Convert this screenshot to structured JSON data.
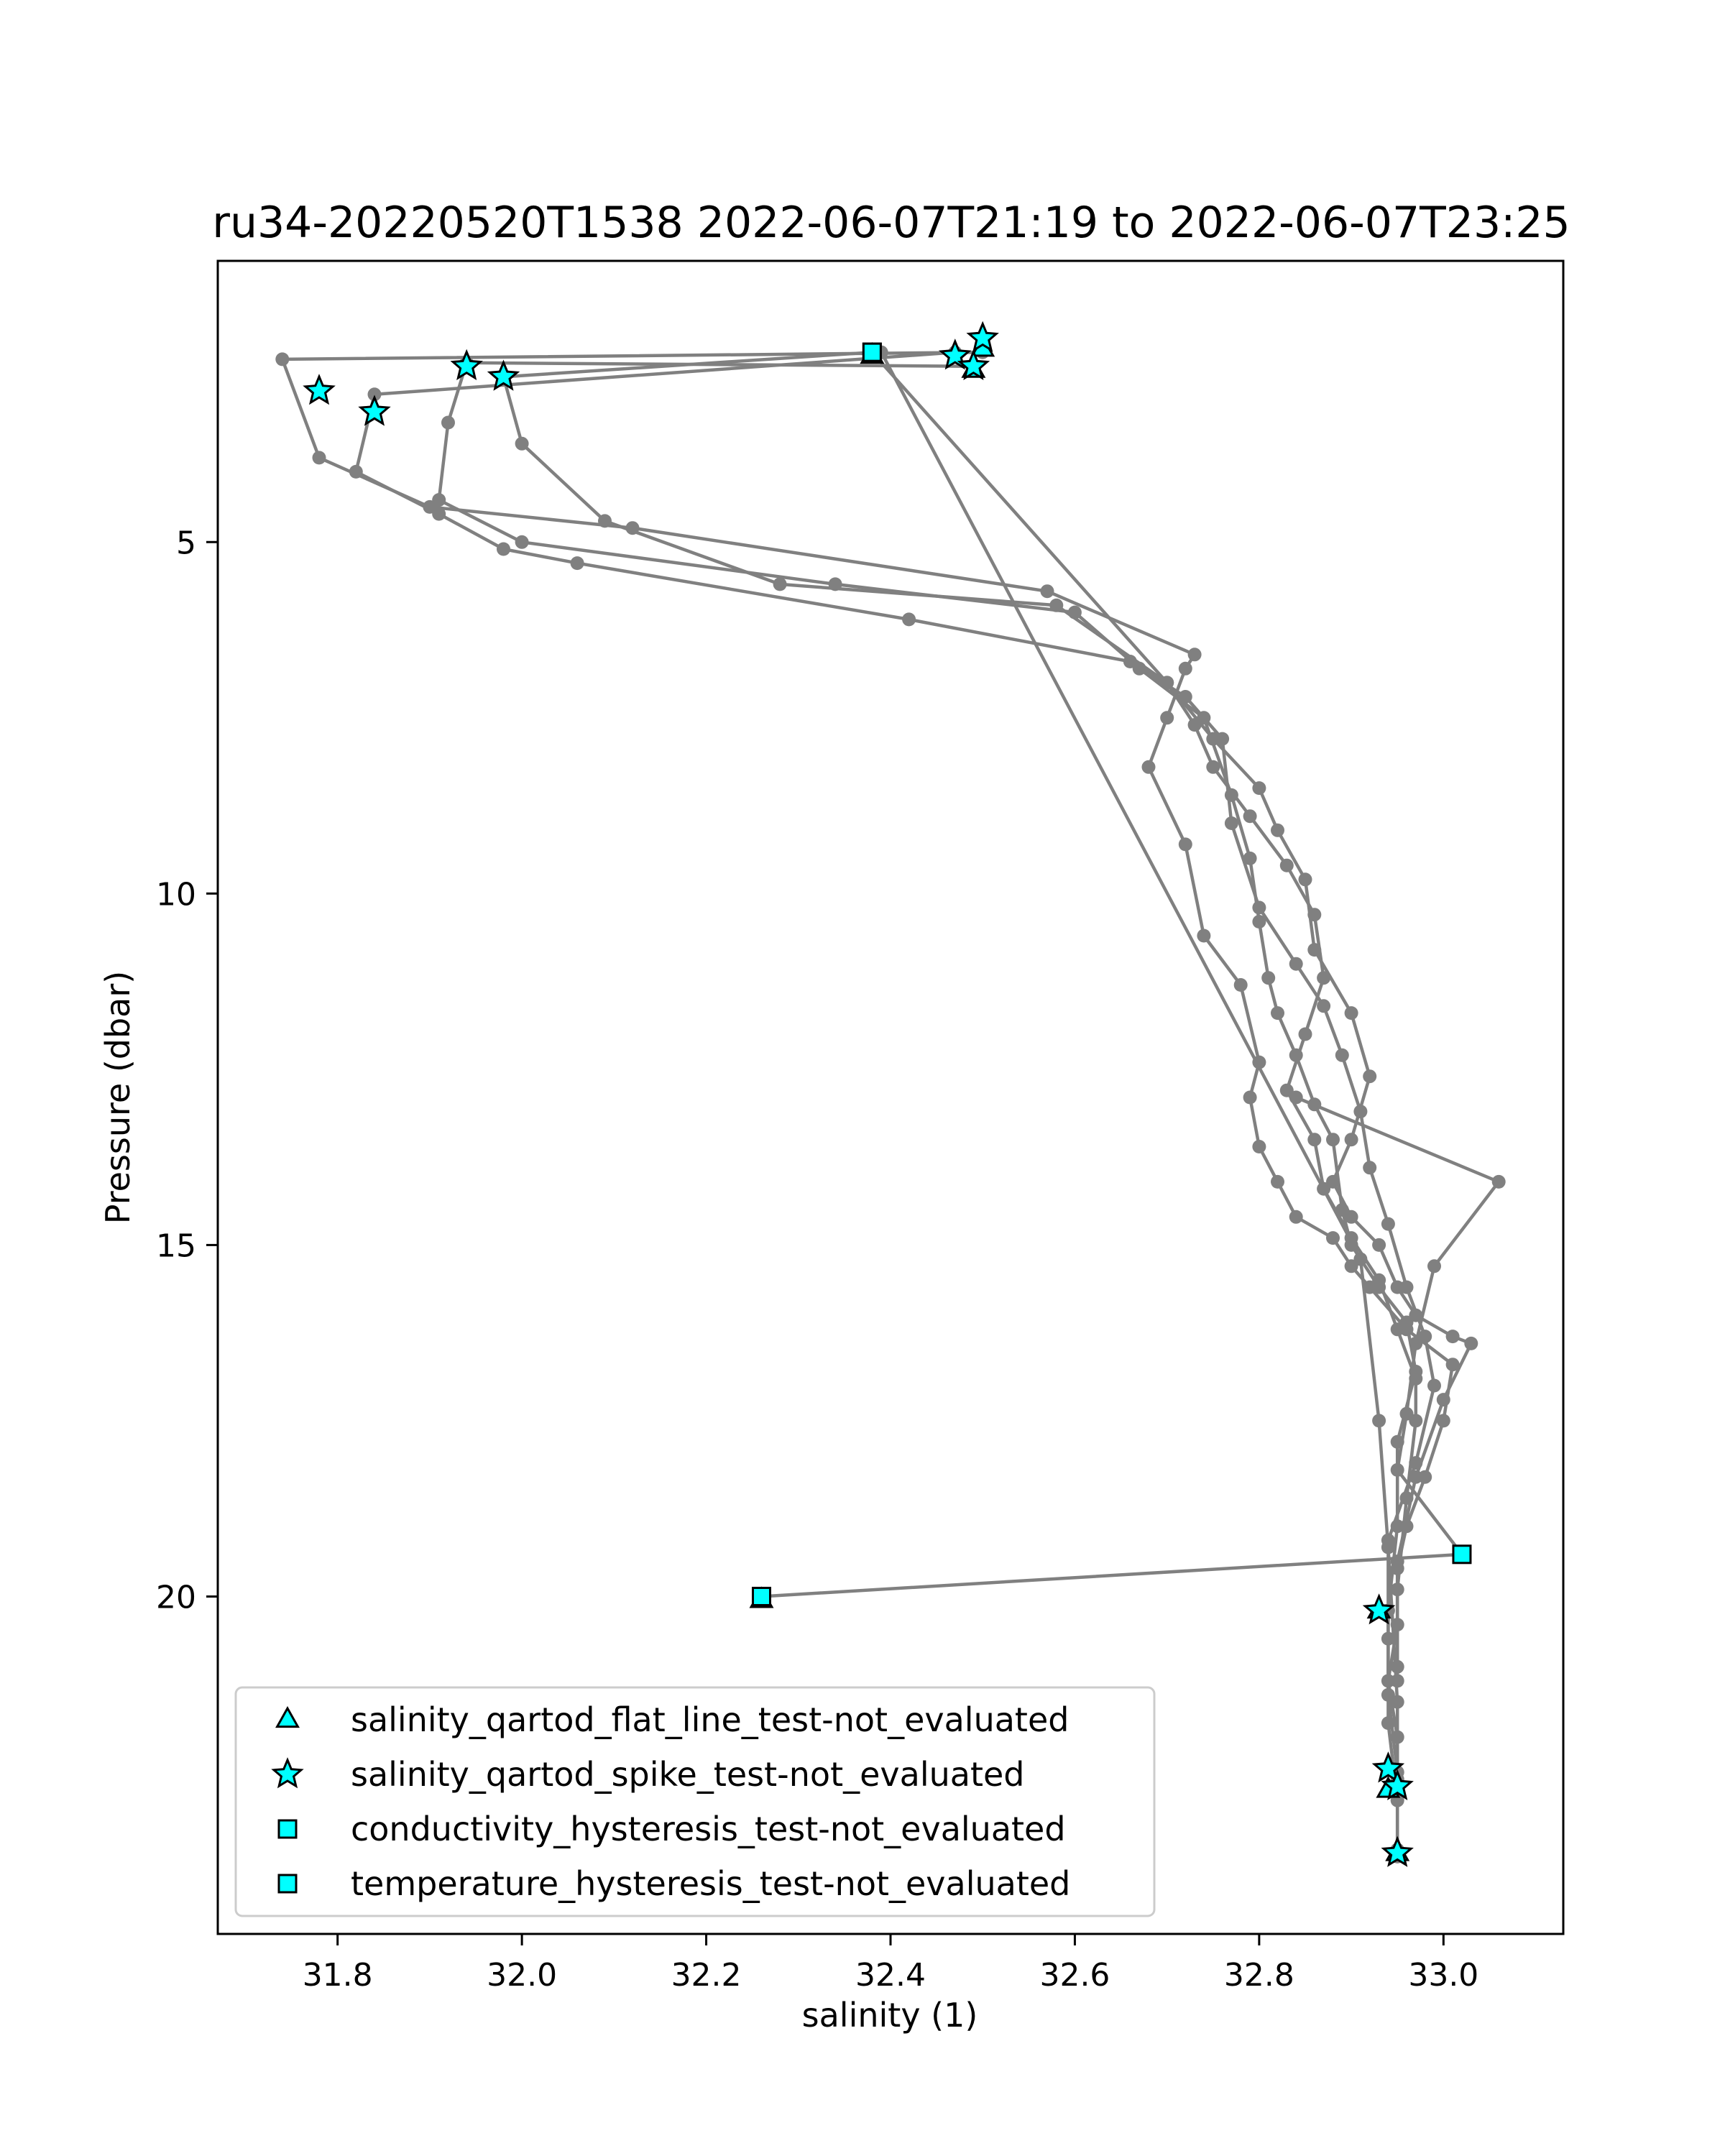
{
  "chart_data": {
    "type": "scatter",
    "title": "ru34-20220520T1538 2022-06-07T21:19 to 2022-06-07T23:25",
    "xlabel": "salinity (1)",
    "ylabel": "Pressure (dbar)",
    "xlim": [
      31.67,
      33.13
    ],
    "ylim": [
      24.8,
      1.0
    ],
    "y_inverted": true,
    "x_ticks": [
      31.8,
      32.0,
      32.2,
      32.4,
      32.6,
      32.8,
      33.0
    ],
    "x_tick_labels": [
      "31.8",
      "32.0",
      "32.2",
      "32.4",
      "32.6",
      "32.8",
      "33.0"
    ],
    "y_ticks": [
      5,
      10,
      15,
      20
    ],
    "y_tick_labels": [
      "5",
      "10",
      "15",
      "20"
    ],
    "grid": false,
    "legend_position": "lower-left",
    "colors": {
      "profile_line": "#808080",
      "profile_point": "#808080",
      "flag_fill": "#00ffff",
      "flag_edge": "#000000"
    },
    "series": [
      {
        "name": "",
        "role": "profile",
        "x": [
          32.5,
          31.74,
          31.78,
          31.9,
          32.12,
          32.57,
          32.73,
          32.72,
          32.7,
          32.68,
          32.72,
          32.74,
          32.78,
          32.8,
          32.79,
          32.8,
          32.82,
          32.84,
          32.88,
          32.9,
          32.92,
          32.96,
          33.01,
          33.0,
          32.98,
          32.96,
          32.95,
          32.95,
          32.94,
          32.95,
          32.95,
          32.95
        ],
        "y": [
          2.3,
          2.4,
          3.8,
          4.5,
          4.8,
          5.7,
          6.6,
          6.8,
          7.5,
          8.2,
          9.3,
          10.6,
          11.3,
          12.4,
          12.9,
          13.6,
          14.1,
          14.6,
          14.9,
          15.3,
          15.6,
          16.2,
          16.7,
          17.5,
          18.3,
          19.0,
          19.6,
          20.4,
          21.2,
          22.0,
          22.6,
          23.6
        ]
      },
      {
        "name": "",
        "role": "profile",
        "x": [
          32.49,
          31.94,
          31.92,
          31.91,
          32.0,
          32.34,
          32.6,
          32.67,
          32.74,
          32.77,
          32.79,
          32.8,
          32.81,
          32.82,
          32.84,
          32.86,
          32.88,
          32.89,
          32.9,
          32.93,
          32.96,
          32.97,
          32.95,
          32.95,
          32.94,
          32.94,
          32.95
        ],
        "y": [
          2.5,
          2.45,
          3.3,
          4.4,
          5.0,
          5.6,
          6.0,
          6.8,
          7.5,
          8.6,
          9.5,
          10.4,
          11.2,
          11.7,
          12.3,
          13.0,
          13.5,
          14.5,
          15.0,
          15.6,
          16.1,
          16.8,
          17.8,
          19.0,
          20.2,
          21.4,
          22.5
        ]
      },
      {
        "name": "",
        "role": "profile",
        "x": [
          32.47,
          31.84,
          31.82,
          31.91,
          31.98,
          32.06,
          32.42,
          32.66,
          32.72,
          32.76,
          32.77,
          32.8,
          32.84,
          32.87,
          32.89,
          32.91,
          32.92,
          32.94,
          32.96,
          32.98,
          32.99,
          32.97,
          32.94,
          32.94,
          32.94,
          32.95
        ],
        "y": [
          2.3,
          2.9,
          4.0,
          4.6,
          5.1,
          5.3,
          6.1,
          6.7,
          7.2,
          7.8,
          9.0,
          10.2,
          11.0,
          11.6,
          12.3,
          13.1,
          13.9,
          14.7,
          15.6,
          16.3,
          17.0,
          18.1,
          19.2,
          20.6,
          21.8,
          22.9
        ]
      },
      {
        "name": "",
        "role": "profile",
        "x": [
          32.38,
          31.98,
          32.0,
          32.09,
          32.28,
          32.58,
          32.7,
          32.75,
          32.8,
          32.82,
          32.85,
          32.86,
          32.9,
          32.92,
          32.9,
          32.88,
          32.9,
          32.93,
          32.95,
          32.97,
          33.01,
          33.03,
          33.0,
          32.97,
          32.95,
          32.95
        ],
        "y": [
          2.3,
          2.65,
          3.6,
          4.7,
          5.6,
          5.9,
          7.0,
          7.8,
          8.5,
          9.1,
          9.8,
          10.8,
          11.7,
          12.6,
          13.5,
          14.1,
          14.6,
          15.0,
          15.6,
          16.0,
          16.3,
          16.4,
          17.2,
          18.3,
          19.5,
          21.0
        ]
      },
      {
        "name": "",
        "role": "profile",
        "x": [
          32.38,
          32.7,
          32.73,
          32.75,
          32.79,
          32.83,
          32.86,
          32.87,
          32.85,
          32.83,
          32.86,
          32.87,
          32.9,
          32.93,
          32.95,
          32.97,
          32.97,
          32.96,
          32.95,
          32.95
        ],
        "y": [
          2.3,
          7.0,
          7.6,
          8.2,
          8.9,
          9.6,
          10.3,
          11.2,
          12.0,
          12.8,
          13.5,
          14.2,
          14.9,
          15.5,
          16.2,
          16.9,
          17.5,
          18.6,
          19.9,
          21.2
        ]
      },
      {
        "name": "",
        "role": "profile",
        "x": [
          32.84,
          33.06,
          32.99,
          32.97,
          32.96,
          32.95,
          33.02,
          32.26
        ],
        "y": [
          12.9,
          14.1,
          15.3,
          16.4,
          17.4,
          18.2,
          19.4,
          20.0
        ]
      },
      {
        "name": "",
        "role": "profile",
        "x": [
          32.39,
          32.91,
          32.93,
          32.94,
          32.95,
          32.95
        ],
        "y": [
          2.3,
          15.2,
          17.5,
          19.3,
          21.5,
          23.7
        ]
      },
      {
        "name": "salinity_qartod_flat_line_test-not_evaluated",
        "role": "flag",
        "marker": "triangle",
        "x": [
          32.38,
          32.5,
          32.49,
          32.26,
          32.93,
          32.94,
          32.95
        ],
        "y": [
          2.35,
          2.25,
          2.55,
          20.05,
          20.2,
          22.75,
          23.65
        ]
      },
      {
        "name": "salinity_qartod_spike_test-not_evaluated",
        "role": "flag",
        "marker": "star",
        "x": [
          32.5,
          32.47,
          32.49,
          31.94,
          31.98,
          31.78,
          31.84,
          32.93,
          32.94,
          32.95,
          32.95
        ],
        "y": [
          2.1,
          2.35,
          2.5,
          2.5,
          2.65,
          2.85,
          3.15,
          20.2,
          22.45,
          22.7,
          23.65
        ]
      },
      {
        "name": "conductivity_hysteresis_test-not_evaluated",
        "role": "flag",
        "marker": "square",
        "x": [
          32.38,
          33.02,
          32.26
        ],
        "y": [
          2.3,
          19.4,
          20.0
        ]
      },
      {
        "name": "temperature_hysteresis_test-not_evaluated",
        "role": "flag",
        "marker": "square",
        "x": [
          32.38,
          32.26
        ],
        "y": [
          2.3,
          20.0
        ]
      }
    ]
  }
}
